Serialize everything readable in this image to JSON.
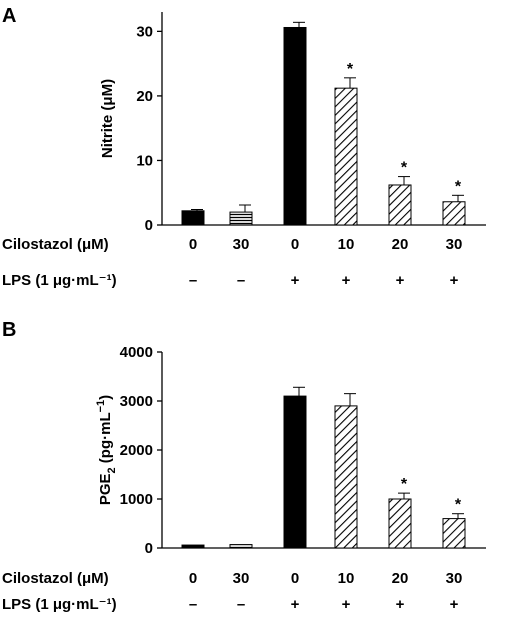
{
  "chart_data": [
    {
      "type": "bar",
      "panel": "A",
      "ylabel": "Nitrite (μM)",
      "ylim": [
        0,
        33
      ],
      "yticks": [
        0,
        10,
        20,
        30
      ],
      "rows": [
        {
          "label": "Cilostazol (μM)",
          "values": [
            "0",
            "30",
            "0",
            "10",
            "20",
            "30"
          ]
        },
        {
          "label": "LPS (1 μg·mL⁻¹)",
          "values": [
            "–",
            "–",
            "+",
            "+",
            "+",
            "+"
          ]
        }
      ],
      "values": [
        2.2,
        2.0,
        30.6,
        21.2,
        6.2,
        3.6
      ],
      "errors": [
        0.2,
        1.1,
        0.8,
        1.6,
        1.3,
        1.0
      ],
      "fills": [
        "solid",
        "horizontal",
        "solid",
        "diagonal",
        "diagonal",
        "diagonal"
      ],
      "significance": [
        "",
        "",
        "",
        "*",
        "*",
        "*"
      ]
    },
    {
      "type": "bar",
      "panel": "B",
      "ylabel": "PGE",
      "ylabel_sub": "2",
      "ylabel_rest": " (pg·mL",
      "ylabel_sup": "−1",
      "ylabel_end": ")",
      "ylim": [
        0,
        4000
      ],
      "yticks": [
        0,
        1000,
        2000,
        3000,
        4000
      ],
      "rows": [
        {
          "label": "Cilostazol (μM)",
          "values": [
            "0",
            "30",
            "0",
            "10",
            "20",
            "30"
          ]
        },
        {
          "label": "LPS (1 μg·mL⁻¹)",
          "values": [
            "–",
            "–",
            "+",
            "+",
            "+",
            "+"
          ]
        }
      ],
      "values": [
        60,
        70,
        3100,
        2900,
        1000,
        600
      ],
      "errors": [
        0,
        0,
        180,
        250,
        120,
        100
      ],
      "fills": [
        "solid",
        "horizontal",
        "solid",
        "diagonal",
        "diagonal",
        "diagonal"
      ],
      "significance": [
        "",
        "",
        "",
        "",
        "*",
        "*"
      ]
    }
  ]
}
